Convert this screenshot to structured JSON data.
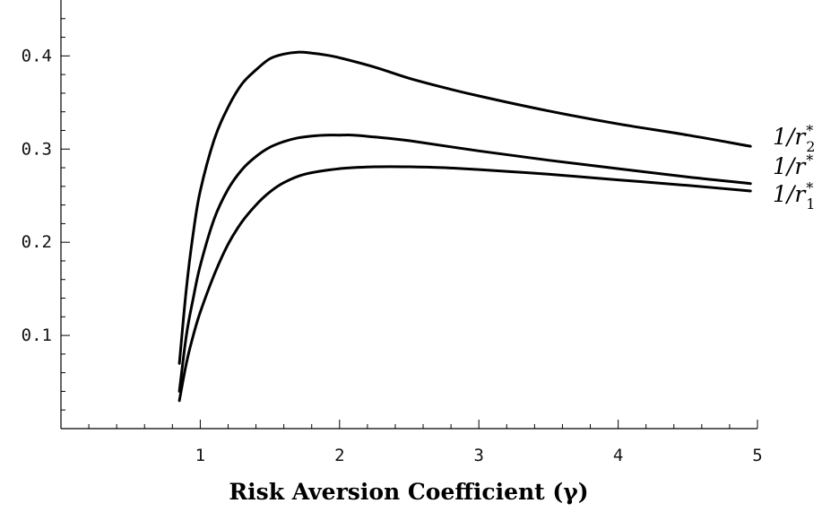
{
  "chart_data": {
    "type": "line",
    "title": "",
    "xlabel": "Risk Aversion Coefficient (γ)",
    "ylabel": "",
    "xlim": [
      0,
      5
    ],
    "ylim": [
      0,
      0.46
    ],
    "grid": false,
    "x_ticks": [
      1,
      2,
      3,
      4,
      5
    ],
    "x_tick_labels": [
      "1",
      "2",
      "3",
      "4",
      "5"
    ],
    "y_ticks": [
      0.1,
      0.2,
      0.3,
      0.4
    ],
    "y_tick_labels": [
      "0.1",
      "0.2",
      "0.3",
      "0.4"
    ],
    "series": [
      {
        "name": "1/r₂*",
        "label_parts": {
          "base": "1/r",
          "sub": "2",
          "sup": "*"
        },
        "x": [
          0.85,
          0.9,
          0.95,
          1.0,
          1.1,
          1.2,
          1.3,
          1.4,
          1.5,
          1.6,
          1.7,
          1.8,
          1.9,
          2.0,
          2.25,
          2.5,
          2.75,
          3.0,
          3.5,
          4.0,
          4.5,
          4.95
        ],
        "y": [
          0.07,
          0.15,
          0.21,
          0.255,
          0.31,
          0.345,
          0.37,
          0.385,
          0.397,
          0.402,
          0.404,
          0.403,
          0.401,
          0.398,
          0.388,
          0.376,
          0.366,
          0.357,
          0.341,
          0.327,
          0.315,
          0.303
        ]
      },
      {
        "name": "1/r*",
        "label_parts": {
          "base": "1/r",
          "sub": "",
          "sup": "*"
        },
        "x": [
          0.85,
          0.9,
          0.95,
          1.0,
          1.1,
          1.2,
          1.3,
          1.4,
          1.5,
          1.6,
          1.7,
          1.8,
          1.9,
          2.0,
          2.1,
          2.25,
          2.5,
          3.0,
          3.5,
          4.0,
          4.5,
          4.95
        ],
        "y": [
          0.04,
          0.1,
          0.14,
          0.175,
          0.225,
          0.257,
          0.278,
          0.292,
          0.302,
          0.308,
          0.312,
          0.314,
          0.315,
          0.315,
          0.315,
          0.313,
          0.309,
          0.298,
          0.288,
          0.279,
          0.27,
          0.263
        ]
      },
      {
        "name": "1/r₁*",
        "label_parts": {
          "base": "1/r",
          "sub": "1",
          "sup": "*"
        },
        "x": [
          0.85,
          0.9,
          0.95,
          1.0,
          1.1,
          1.2,
          1.3,
          1.4,
          1.5,
          1.6,
          1.75,
          2.0,
          2.25,
          2.5,
          2.75,
          3.0,
          3.5,
          4.0,
          4.5,
          4.95
        ],
        "y": [
          0.03,
          0.07,
          0.1,
          0.125,
          0.165,
          0.198,
          0.222,
          0.24,
          0.254,
          0.264,
          0.273,
          0.279,
          0.281,
          0.281,
          0.28,
          0.278,
          0.273,
          0.267,
          0.261,
          0.255
        ]
      }
    ]
  }
}
